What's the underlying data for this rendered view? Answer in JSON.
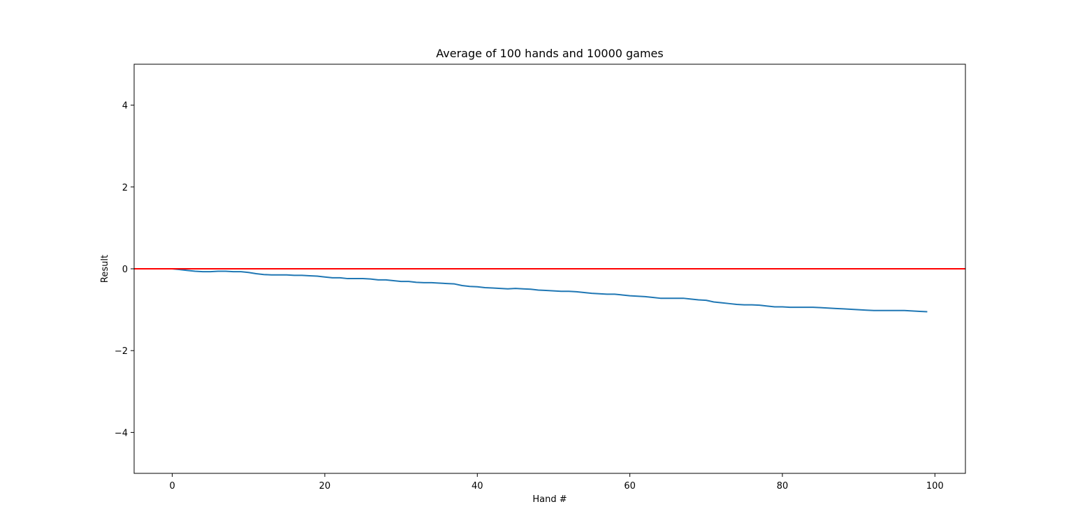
{
  "chart_data": {
    "type": "line",
    "title": "Average of 100 hands and 10000 games",
    "xlabel": "Hand #",
    "ylabel": "Result",
    "xlim": [
      -5,
      104
    ],
    "ylim": [
      -5,
      5
    ],
    "xticks": [
      0,
      20,
      40,
      60,
      80,
      100
    ],
    "yticks": [
      -4,
      -2,
      0,
      2,
      4
    ],
    "xtick_labels": [
      "0",
      "20",
      "40",
      "60",
      "80",
      "100"
    ],
    "ytick_labels": [
      "−4",
      "−2",
      "0",
      "2",
      "4"
    ],
    "grid": false,
    "series": [
      {
        "color": "#1f77b4",
        "x": [
          0,
          1,
          2,
          3,
          4,
          5,
          6,
          7,
          8,
          9,
          10,
          11,
          12,
          13,
          14,
          15,
          16,
          17,
          18,
          19,
          20,
          21,
          22,
          23,
          24,
          25,
          26,
          27,
          28,
          29,
          30,
          31,
          32,
          33,
          34,
          35,
          36,
          37,
          38,
          39,
          40,
          41,
          42,
          43,
          44,
          45,
          46,
          47,
          48,
          49,
          50,
          51,
          52,
          53,
          54,
          55,
          56,
          57,
          58,
          59,
          60,
          61,
          62,
          63,
          64,
          65,
          66,
          67,
          68,
          69,
          70,
          71,
          72,
          73,
          74,
          75,
          76,
          77,
          78,
          79,
          80,
          81,
          82,
          83,
          84,
          85,
          86,
          87,
          88,
          89,
          90,
          91,
          92,
          93,
          94,
          95,
          96,
          97,
          98,
          99
        ],
        "y": [
          0.0,
          -0.02,
          -0.04,
          -0.06,
          -0.07,
          -0.07,
          -0.06,
          -0.06,
          -0.07,
          -0.07,
          -0.09,
          -0.12,
          -0.14,
          -0.15,
          -0.15,
          -0.15,
          -0.16,
          -0.16,
          -0.17,
          -0.18,
          -0.2,
          -0.22,
          -0.22,
          -0.24,
          -0.24,
          -0.24,
          -0.25,
          -0.27,
          -0.27,
          -0.29,
          -0.31,
          -0.31,
          -0.33,
          -0.34,
          -0.34,
          -0.35,
          -0.36,
          -0.37,
          -0.41,
          -0.43,
          -0.44,
          -0.46,
          -0.47,
          -0.48,
          -0.49,
          -0.48,
          -0.49,
          -0.5,
          -0.52,
          -0.53,
          -0.54,
          -0.55,
          -0.55,
          -0.56,
          -0.58,
          -0.6,
          -0.61,
          -0.62,
          -0.62,
          -0.64,
          -0.66,
          -0.67,
          -0.68,
          -0.7,
          -0.72,
          -0.72,
          -0.72,
          -0.72,
          -0.74,
          -0.76,
          -0.77,
          -0.81,
          -0.83,
          -0.85,
          -0.87,
          -0.88,
          -0.88,
          -0.89,
          -0.91,
          -0.93,
          -0.93,
          -0.94,
          -0.94,
          -0.94,
          -0.94,
          -0.95,
          -0.96,
          -0.97,
          -0.98,
          -0.99,
          -1.0,
          -1.01,
          -1.02,
          -1.02,
          -1.02,
          -1.02,
          -1.02,
          -1.03,
          -1.04,
          -1.05
        ]
      }
    ],
    "reference_lines": [
      {
        "orientation": "horizontal",
        "y": 0,
        "color": "#ff0000"
      }
    ]
  }
}
